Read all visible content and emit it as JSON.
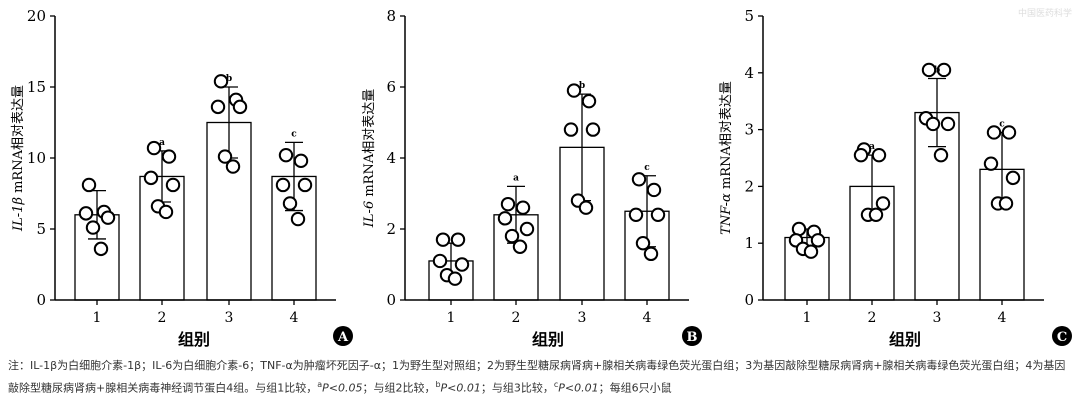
{
  "chart_data": [
    {
      "type": "bar",
      "panel_label": "A",
      "categories": [
        "1",
        "2",
        "3",
        "4"
      ],
      "values": [
        6.0,
        8.7,
        12.5,
        8.7
      ],
      "sd": [
        1.7,
        1.8,
        2.5,
        2.4
      ],
      "points": [
        [
          8.1,
          6.2,
          6.1,
          5.8,
          5.1,
          3.6
        ],
        [
          10.7,
          10.1,
          8.6,
          8.1,
          6.6,
          6.2
        ],
        [
          15.4,
          14.1,
          13.6,
          13.6,
          10.1,
          9.4
        ],
        [
          10.2,
          9.8,
          8.1,
          8.1,
          6.8,
          5.7
        ]
      ],
      "sig": [
        "",
        "a",
        "b",
        "c"
      ],
      "ylim": [
        0,
        20
      ],
      "yticks": [
        "0",
        "5",
        "10",
        "15",
        "20"
      ],
      "xlabel": "组别",
      "ylabel_italic": "IL-1β",
      "ylabel_rest": " mRNA相对表达量"
    },
    {
      "type": "bar",
      "panel_label": "B",
      "categories": [
        "1",
        "2",
        "3",
        "4"
      ],
      "values": [
        1.1,
        2.4,
        4.3,
        2.5
      ],
      "sd": [
        0.5,
        0.8,
        1.5,
        1.0
      ],
      "points": [
        [
          1.7,
          1.7,
          1.1,
          1.0,
          0.7,
          0.6
        ],
        [
          2.7,
          2.6,
          2.3,
          2.0,
          1.8,
          1.5
        ],
        [
          5.9,
          5.6,
          4.8,
          4.8,
          2.8,
          2.6
        ],
        [
          3.4,
          3.1,
          2.4,
          2.4,
          1.6,
          1.3
        ]
      ],
      "sig": [
        "",
        "a",
        "b",
        "c"
      ],
      "ylim": [
        0,
        8
      ],
      "yticks": [
        "0",
        "2",
        "4",
        "6",
        "8"
      ],
      "xlabel": "组别",
      "ylabel_italic": "IL-6",
      "ylabel_rest": " mRNA相对表达量"
    },
    {
      "type": "bar",
      "panel_label": "C",
      "categories": [
        "1",
        "2",
        "3",
        "4"
      ],
      "values": [
        1.1,
        2.0,
        3.3,
        2.3
      ],
      "sd": [
        0.15,
        0.55,
        0.6,
        0.65
      ],
      "points": [
        [
          1.25,
          1.2,
          1.05,
          1.05,
          0.9,
          0.85
        ],
        [
          2.65,
          2.55,
          2.55,
          1.7,
          1.5,
          1.5
        ],
        [
          4.05,
          4.05,
          3.2,
          3.1,
          3.1,
          2.55
        ],
        [
          2.95,
          2.95,
          2.4,
          2.15,
          1.7,
          1.7
        ]
      ],
      "sig": [
        "",
        "a",
        "b",
        "c"
      ],
      "ylim": [
        0,
        5
      ],
      "yticks": [
        "0",
        "1",
        "2",
        "3",
        "4",
        "5"
      ],
      "xlabel": "组别",
      "ylabel_italic": "TNF-α",
      "ylabel_rest": " mRNA相对表达量"
    }
  ],
  "note": {
    "prefix": "注：IL-1β为白细胞介素-1β；IL-6为白细胞介素-6；TNF-α为肿瘤坏死因子-α；1为野生型对照组；2为野生型糖尿病肾病+腺相关病毒绿色荧光蛋白组；3为基因敲除型糖尿病肾病+腺相关病毒绿色荧光蛋白组；4为基因敲除型糖尿病肾病+腺相关病毒神经调节蛋白4组。与组1比较，",
    "sup_a": "a",
    "p_a": "P<0.05",
    "mid1": "；与组2比较，",
    "sup_b": "b",
    "p_b": "P<0.01",
    "mid2": "；与组3比较，",
    "sup_c": "c",
    "p_c": "P<0.01",
    "suffix": "；每组6只小鼠"
  },
  "watermark": "中国医药科学"
}
